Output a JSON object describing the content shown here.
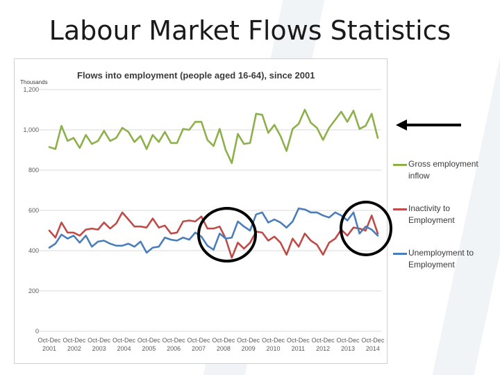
{
  "slide": {
    "title": "Labour Market Flows Statistics"
  },
  "chart_data": {
    "type": "line",
    "title": "Flows into employment (people aged 16-64), since 2001",
    "ylabel": "Thousands",
    "ylim": [
      0,
      1200
    ],
    "yticks": [
      "0",
      "200",
      "400",
      "600",
      "800",
      "1,000",
      "1,200"
    ],
    "ytick_values": [
      0,
      200,
      400,
      600,
      800,
      1000,
      1200
    ],
    "grid": true,
    "legend_position": "right",
    "x_tick_labels": [
      {
        "period": "Oct-Dec",
        "year": "2001"
      },
      {
        "period": "Oct-Dec",
        "year": "2002"
      },
      {
        "period": "Oct-Dec",
        "year": "2003"
      },
      {
        "period": "Oct-Dec",
        "year": "2004"
      },
      {
        "period": "Oct-Dec",
        "year": "2005"
      },
      {
        "period": "Oct-Dec",
        "year": "2006"
      },
      {
        "period": "Oct-Dec",
        "year": "2007"
      },
      {
        "period": "Oct-Dec",
        "year": "2008"
      },
      {
        "period": "Oct-Dec",
        "year": "2009"
      },
      {
        "period": "Oct-Dec",
        "year": "2010"
      },
      {
        "period": "Oct-Dec",
        "year": "2011"
      },
      {
        "period": "Oct-Dec",
        "year": "2012"
      },
      {
        "period": "Oct-Dec",
        "year": "2013"
      },
      {
        "period": "Oct-Dec",
        "year": "2014"
      }
    ],
    "series": [
      {
        "name": "Gross employment inflow",
        "color": "#8db04a",
        "values": [
          915,
          905,
          1020,
          945,
          960,
          910,
          975,
          930,
          945,
          995,
          945,
          960,
          1010,
          990,
          940,
          970,
          905,
          975,
          940,
          990,
          935,
          935,
          1005,
          1000,
          1040,
          1040,
          950,
          920,
          1005,
          900,
          835,
          980,
          930,
          935,
          1080,
          1075,
          985,
          1025,
          970,
          895,
          1005,
          1030,
          1100,
          1035,
          1010,
          950,
          1010,
          1050,
          1090,
          1040,
          1095,
          1005,
          1020,
          1080,
          960
        ]
      },
      {
        "name": "Inactivity to Employment",
        "color": "#bf4b48",
        "values": [
          500,
          465,
          540,
          490,
          490,
          475,
          505,
          510,
          505,
          540,
          510,
          535,
          590,
          555,
          520,
          520,
          515,
          560,
          515,
          525,
          485,
          490,
          545,
          550,
          545,
          570,
          510,
          510,
          520,
          460,
          365,
          440,
          410,
          440,
          495,
          490,
          450,
          470,
          440,
          380,
          460,
          420,
          485,
          450,
          430,
          380,
          440,
          460,
          505,
          475,
          515,
          510,
          500,
          575,
          485
        ]
      },
      {
        "name": "Unemployment to Employment",
        "color": "#4a7ebb",
        "values": [
          415,
          435,
          480,
          460,
          475,
          440,
          475,
          420,
          445,
          450,
          435,
          425,
          425,
          435,
          420,
          445,
          390,
          415,
          420,
          465,
          455,
          450,
          465,
          455,
          490,
          470,
          425,
          405,
          485,
          460,
          465,
          545,
          520,
          500,
          580,
          590,
          540,
          555,
          540,
          515,
          545,
          610,
          605,
          590,
          590,
          575,
          565,
          590,
          575,
          550,
          590,
          485,
          520,
          505,
          475
        ]
      }
    ]
  },
  "legend": {
    "items": [
      {
        "line1": "Gross employment",
        "line2": "inflow",
        "color": "#8db04a"
      },
      {
        "line1": "Inactivity to",
        "line2": "Employment",
        "color": "#bf4b48"
      },
      {
        "line1": "Unemployment to",
        "line2": "Employment",
        "color": "#4a7ebb"
      }
    ]
  },
  "annotations": {
    "arrow_color": "#000000",
    "circle_color": "#000000"
  }
}
